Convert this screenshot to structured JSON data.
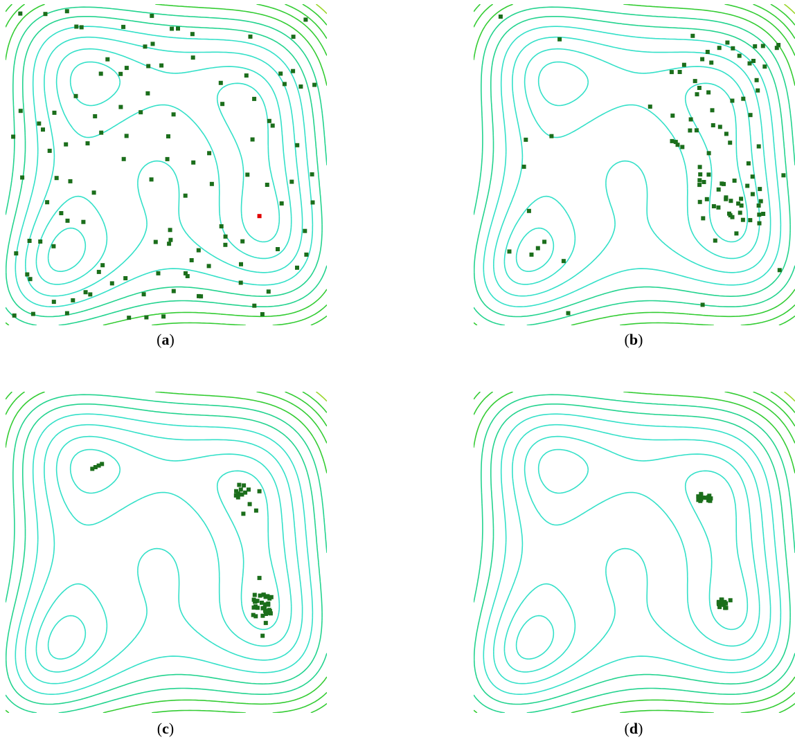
{
  "figure": {
    "colors": {
      "background": "#ffffff",
      "particle": "#1b6e1b",
      "best_particle": "#e00000",
      "contour_inner": "#33e0c8",
      "contour_mid": "#22d38e",
      "contour_green": "#33cc33",
      "contour_yellowgreen": "#9ad62a",
      "contour_yellow": "#d8d81a",
      "contour_orange": "#f08a2a"
    },
    "panels": [
      {
        "id": "a",
        "label": "a",
        "caption_open": "(",
        "caption_close": ")",
        "state": "scattered",
        "best_point": [
          0.79,
          0.66
        ]
      },
      {
        "id": "b",
        "label": "b",
        "caption_open": "(",
        "caption_close": ")",
        "state": "clustering"
      },
      {
        "id": "c",
        "label": "c",
        "caption_open": "(",
        "caption_close": ")",
        "state": "clusters"
      },
      {
        "id": "d",
        "label": "d",
        "caption_open": "(",
        "caption_close": ")",
        "state": "converged"
      }
    ]
  }
}
